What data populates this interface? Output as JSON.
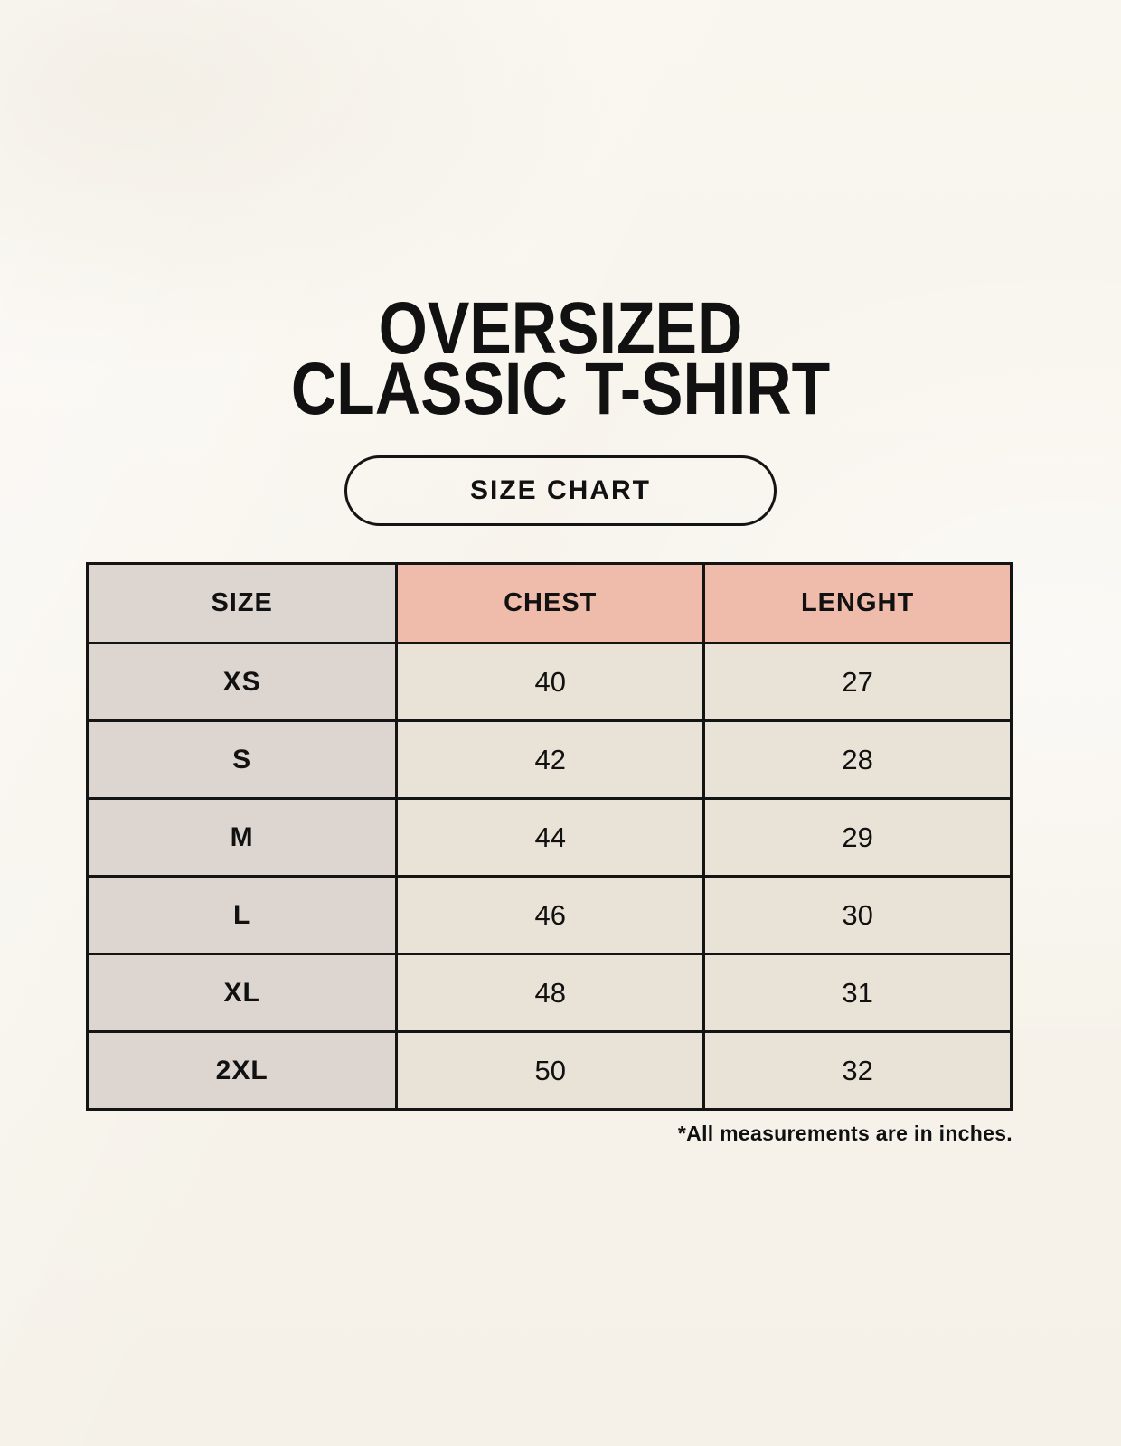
{
  "page": {
    "title_line1": "OVERSIZED",
    "title_line2": "CLASSIC T-SHIRT",
    "size_chart_button_label": "SIZE CHART",
    "footnote": "*All measurements are in inches."
  },
  "chart_data": {
    "type": "table",
    "title": "OVERSIZED CLASSIC T-SHIRT — SIZE CHART",
    "columns": [
      "SIZE",
      "CHEST",
      "LENGHT"
    ],
    "rows": [
      [
        "XS",
        "40",
        "27"
      ],
      [
        "S",
        "42",
        "28"
      ],
      [
        "M",
        "44",
        "29"
      ],
      [
        "L",
        "46",
        "30"
      ],
      [
        "XL",
        "48",
        "31"
      ],
      [
        "2XL",
        "50",
        "32"
      ]
    ],
    "units_note": "*All measurements are in inches.",
    "units": "inches"
  },
  "colors": {
    "background": "#f8f5ee",
    "header_pink": "#efbcab",
    "size_col_gray": "#dcd5d0",
    "cell_cream": "#e9e2d6",
    "border_black": "#141414",
    "text": "#111111"
  }
}
